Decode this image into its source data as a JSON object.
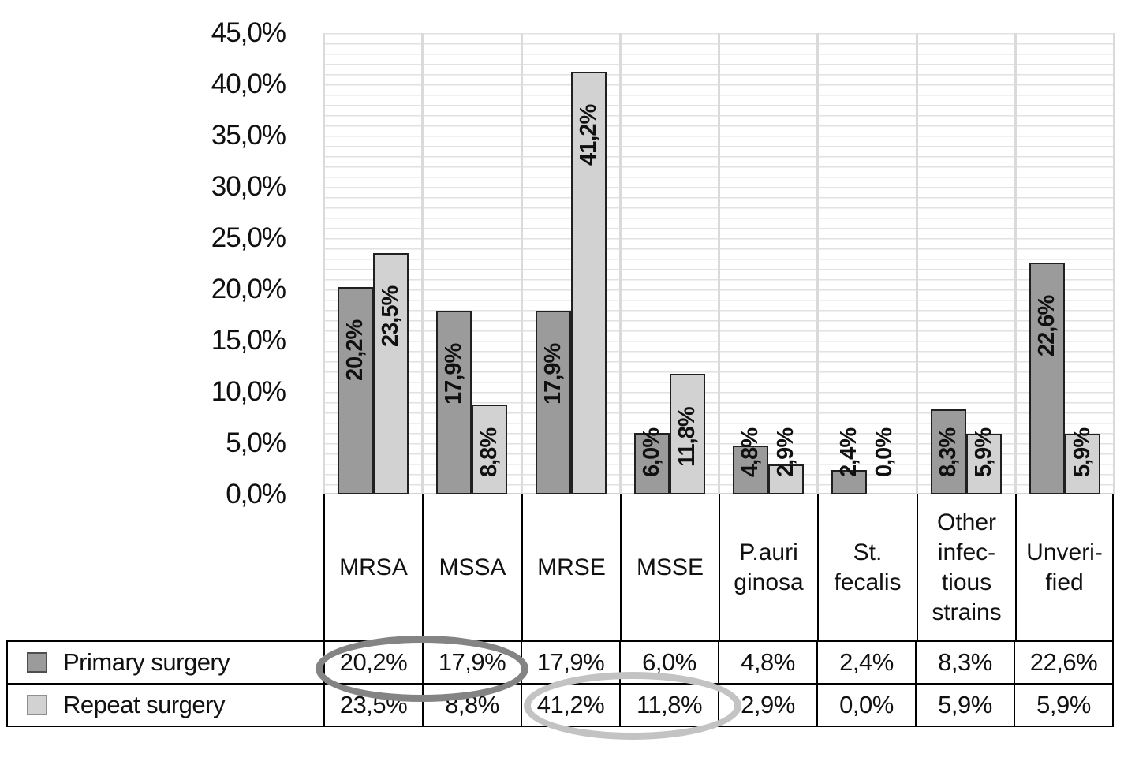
{
  "chart_data": {
    "type": "bar",
    "title": "",
    "xlabel": "",
    "ylabel": "",
    "decimal_style": "comma",
    "categories": [
      "MRSA",
      "MSSA",
      "MRSE",
      "MSSE",
      "P.auriginosa",
      "St. fecalis",
      "Other infectious strains",
      "Unverified"
    ],
    "category_display_lines": [
      [
        "MRSA"
      ],
      [
        "MSSA"
      ],
      [
        "MRSE"
      ],
      [
        "MSSE"
      ],
      [
        "P.auri",
        "ginosa"
      ],
      [
        "St.",
        "fecalis"
      ],
      [
        "Other",
        "infec-",
        "tious",
        "strains"
      ],
      [
        "Unveri-",
        "fied"
      ]
    ],
    "series": [
      {
        "name": "Primary surgery",
        "values": [
          20.2,
          17.9,
          17.9,
          6.0,
          4.8,
          2.4,
          8.3,
          22.6
        ],
        "labels": [
          "20,2%",
          "17,9%",
          "17,9%",
          "6,0%",
          "4,8%",
          "2,4%",
          "8,3%",
          "22,6%"
        ],
        "fill": "#9b9b9b",
        "swatch_border": "#4f4f4f"
      },
      {
        "name": "Repeat surgery",
        "values": [
          23.5,
          8.8,
          41.2,
          11.8,
          2.9,
          0.0,
          5.9,
          5.9
        ],
        "labels": [
          "23,5%",
          "8,8%",
          "41,2%",
          "11,8%",
          "2,9%",
          "0,0%",
          "5,9%",
          "5,9%"
        ],
        "fill": "#d2d2d2",
        "swatch_border": "#8f8f8f"
      }
    ],
    "ylim": [
      0,
      45
    ],
    "ytick_labels": [
      "45,0%",
      "40,0%",
      "35,0%",
      "30,0%",
      "25,0%",
      "20,0%",
      "15,0%",
      "10,0%",
      "5,0%",
      "0,0%"
    ],
    "ytick_values": [
      45,
      40,
      35,
      30,
      25,
      20,
      15,
      10,
      5,
      0
    ],
    "grid": {
      "horizontal_minor_step_pct": 1,
      "minor_color": "#e2e2e2",
      "vertical_color": "#dadada",
      "grid_on": true
    },
    "bar_outline_color": "#202020",
    "legend_position": "bottom table, left column",
    "annotations": [
      {
        "type": "ellipse",
        "color": "#848484",
        "around": "Primary surgery row: MRSA 20,2% and MSSA 17,9%"
      },
      {
        "type": "ellipse",
        "color": "#c3c3c3",
        "around": "Repeat surgery row: MRSE 41,2% and MSSE 11,8%"
      }
    ]
  }
}
